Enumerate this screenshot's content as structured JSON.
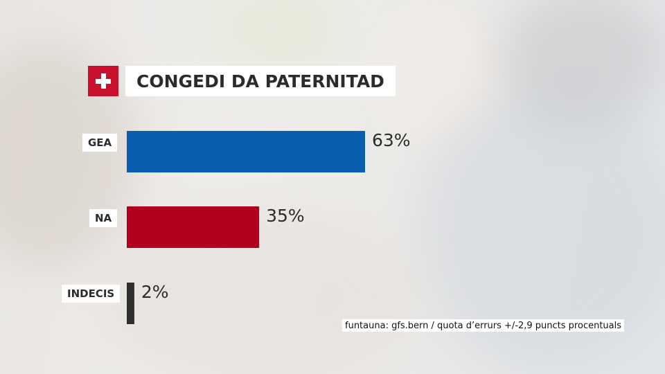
{
  "title": "CONGEDI DA PATERNITAD",
  "flag_icon": "swiss-cross-icon",
  "source": "funtauna: gfs.bern / quota d’errurs +/-2,9 puncts procentuals",
  "chart_data": {
    "type": "bar",
    "orientation": "horizontal",
    "title": "CONGEDI DA PATERNITAD",
    "categories": [
      "GEA",
      "NA",
      "INDECIS"
    ],
    "values": [
      63,
      35,
      2
    ],
    "value_labels": [
      "63%",
      "35%",
      "2%"
    ],
    "colors": [
      "#0a5eb0",
      "#b0001e",
      "#2f2f2f"
    ],
    "unit": "%",
    "xlim": [
      0,
      100
    ],
    "grid": false,
    "legend": "none"
  }
}
